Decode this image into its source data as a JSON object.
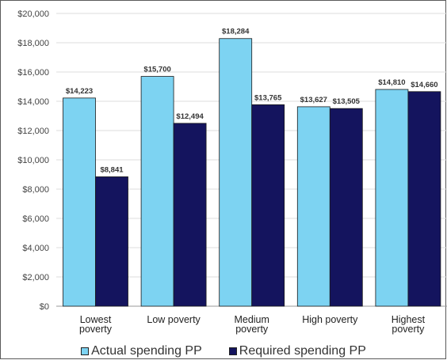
{
  "chart_data": {
    "type": "bar",
    "categories": [
      [
        "Lowest",
        "poverty"
      ],
      [
        "Low poverty"
      ],
      [
        "Medium",
        "poverty"
      ],
      [
        "High poverty"
      ],
      [
        "Highest",
        "poverty"
      ]
    ],
    "series": [
      {
        "name": "Actual spending PP",
        "color": "#7dd3f2",
        "values": [
          14223,
          15700,
          18284,
          13627,
          14810
        ],
        "labels": [
          "$14,223",
          "$15,700",
          "$18,284",
          "$13,627",
          "$14,810"
        ]
      },
      {
        "name": "Required spending PP",
        "color": "#14145e",
        "values": [
          8841,
          12494,
          13765,
          13505,
          14660
        ],
        "labels": [
          "$8,841",
          "$12,494",
          "$13,765",
          "$13,505",
          "$14,660"
        ]
      }
    ],
    "ylim": [
      0,
      20000
    ],
    "yticks": [
      0,
      2000,
      4000,
      6000,
      8000,
      10000,
      12000,
      14000,
      16000,
      18000,
      20000
    ],
    "ytick_labels": [
      "$0",
      "$2,000",
      "$4,000",
      "$6,000",
      "$8,000",
      "$10,000",
      "$12,000",
      "$14,000",
      "$16,000",
      "$18,000",
      "$20,000"
    ],
    "grid": true,
    "legend_position": "bottom"
  },
  "legend": {
    "actual_label": "Actual spending PP",
    "required_label": "Required spending PP"
  }
}
